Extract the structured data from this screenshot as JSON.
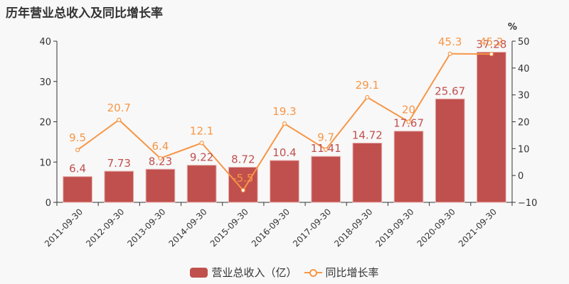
{
  "title": "历年营业总收入及同比增长率",
  "chart_data": {
    "type": "bar",
    "title": "历年营业总收入及同比增长率",
    "categories": [
      "2011-09-30",
      "2012-09-30",
      "2013-09-30",
      "2014-09-30",
      "2015-09-30",
      "2016-09-30",
      "2017-09-30",
      "2018-09-30",
      "2019-09-30",
      "2020-09-30",
      "2021-09-30"
    ],
    "series": [
      {
        "name": "营业总收入（亿）",
        "type": "bar",
        "axis": "left",
        "color": "#c0504d",
        "values": [
          6.4,
          7.73,
          8.23,
          9.22,
          8.72,
          10.4,
          11.41,
          14.72,
          17.67,
          25.67,
          37.28
        ]
      },
      {
        "name": "同比增长率",
        "type": "line",
        "axis": "right",
        "color": "#f79646",
        "values": [
          9.5,
          20.7,
          6.4,
          12.1,
          -5.5,
          19.3,
          9.7,
          29.1,
          20,
          45.3,
          45.2
        ]
      }
    ],
    "left_axis": {
      "ylim": [
        0,
        40
      ],
      "ticks": [
        0,
        10,
        20,
        30,
        40
      ]
    },
    "right_axis": {
      "label": "%",
      "ylim": [
        -10,
        50
      ],
      "ticks": [
        -10,
        0,
        10,
        20,
        30,
        40,
        50
      ]
    },
    "xlabel": "",
    "ylabel": "",
    "grid": false,
    "legend_position": "bottom"
  },
  "legend": {
    "bar_label": "营业总收入（亿）",
    "line_label": "同比增长率"
  },
  "right_axis_unit": "%"
}
